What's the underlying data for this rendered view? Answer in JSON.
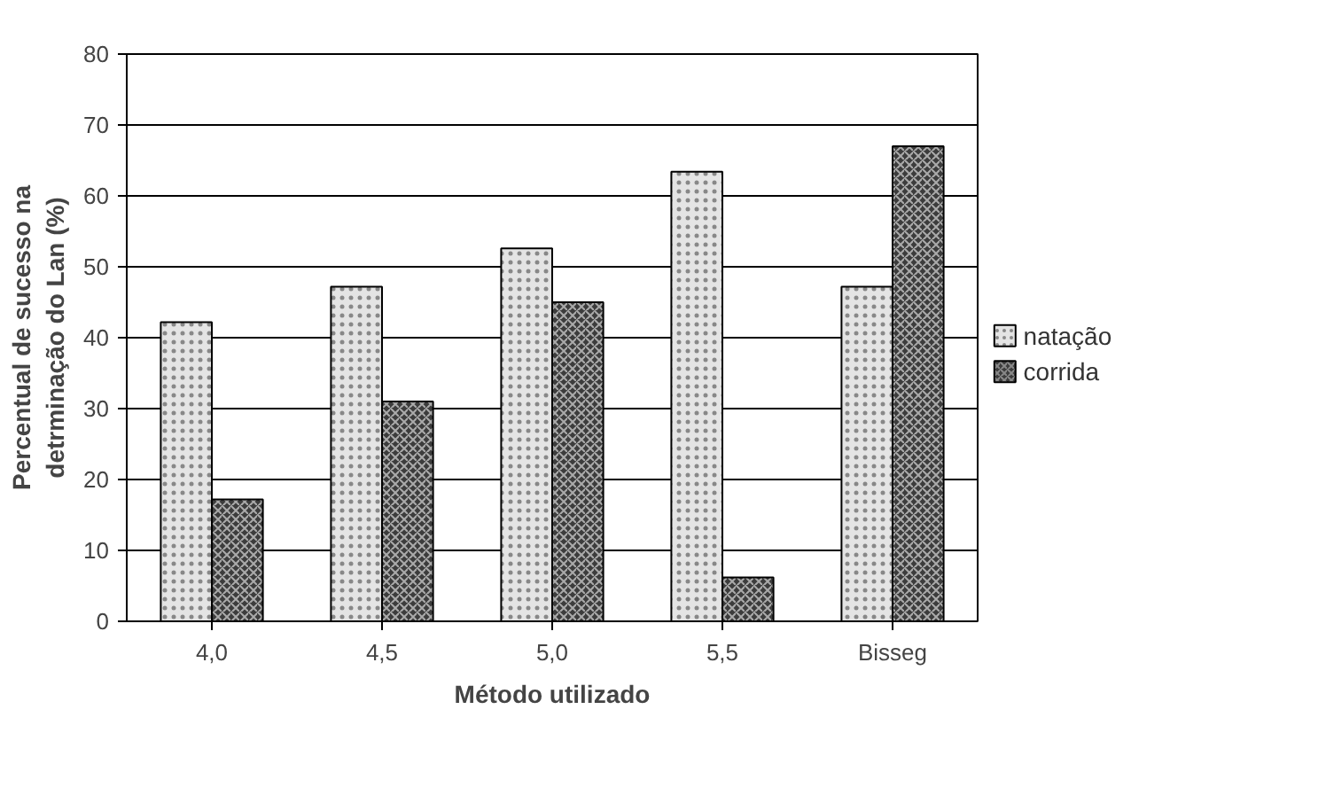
{
  "chart_data": {
    "type": "bar",
    "xlabel": "Método utilizado",
    "ylabel": "Percentual de sucesso na\ndetrminação do Lan (%)",
    "categories": [
      "4,0",
      "4,5",
      "5,0",
      "5,5",
      "Bisseg"
    ],
    "series": [
      {
        "name": "natação",
        "color": "#e4e4e4",
        "values": [
          42.2,
          47.2,
          52.6,
          63.4,
          47.2
        ]
      },
      {
        "name": "corrida",
        "color": "#3c3c3c",
        "values": [
          17.2,
          31.0,
          45.0,
          6.2,
          67.0
        ]
      }
    ],
    "ylim": [
      0,
      80
    ],
    "yticks": [
      0,
      10,
      20,
      30,
      40,
      50,
      60,
      70,
      80
    ],
    "grid": "y",
    "legend": "right"
  }
}
